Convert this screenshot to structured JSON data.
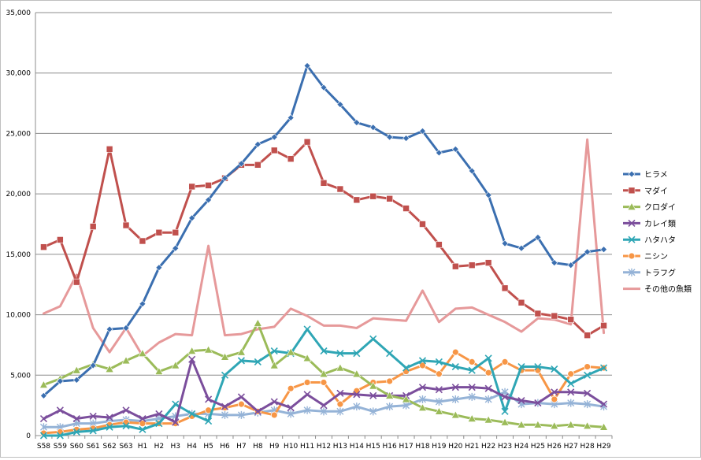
{
  "chart_data": {
    "type": "line",
    "title": "",
    "xlabel": "",
    "ylabel": "",
    "ylim": [
      0,
      35000
    ],
    "yticks": [
      0,
      5000,
      10000,
      15000,
      20000,
      25000,
      30000,
      35000
    ],
    "ytick_labels": [
      "0",
      "5,000",
      "10,000",
      "15,000",
      "20,000",
      "25,000",
      "30,000",
      "35,000"
    ],
    "grid": true,
    "legend_position": "right",
    "categories": [
      "S58",
      "S59",
      "S60",
      "S61",
      "S62",
      "S63",
      "H1",
      "H2",
      "H3",
      "H4",
      "H5",
      "H6",
      "H7",
      "H8",
      "H9",
      "H10",
      "H11",
      "H12",
      "H13",
      "H14",
      "H15",
      "H16",
      "H17",
      "H18",
      "H19",
      "H20",
      "H21",
      "H22",
      "H23",
      "H24",
      "H25",
      "H26",
      "H27",
      "H28",
      "H29"
    ],
    "series": [
      {
        "name": "ヒラメ",
        "color": "#3b6fb0",
        "marker": "diamond",
        "values": [
          3300,
          4500,
          4600,
          5800,
          8800,
          8900,
          10900,
          13900,
          15500,
          18000,
          19500,
          21300,
          22500,
          24100,
          24700,
          26300,
          30600,
          28800,
          27400,
          25900,
          25500,
          24700,
          24600,
          25200,
          23400,
          23700,
          21900,
          19900,
          15900,
          15500,
          16400,
          14300,
          14100,
          15200,
          15400
        ]
      },
      {
        "name": "マダイ",
        "color": "#c0504d",
        "marker": "square",
        "values": [
          15600,
          16200,
          12700,
          17300,
          23700,
          17400,
          16100,
          16800,
          16800,
          20600,
          20700,
          21300,
          22400,
          22400,
          23600,
          22900,
          24300,
          20900,
          20400,
          19500,
          19800,
          19600,
          18800,
          17500,
          15800,
          14000,
          14100,
          14300,
          12200,
          11000,
          10100,
          9900,
          9600,
          8300,
          9100
        ]
      },
      {
        "name": "クロダイ",
        "color": "#9bbb59",
        "marker": "triangle",
        "values": [
          4200,
          4700,
          5400,
          5900,
          5500,
          6200,
          6800,
          5300,
          5800,
          7000,
          7100,
          6500,
          6900,
          9300,
          5800,
          6900,
          6400,
          5100,
          5600,
          5100,
          4100,
          3300,
          3000,
          2300,
          2000,
          1700,
          1400,
          1300,
          1100,
          900,
          900,
          800,
          900,
          800,
          700
        ]
      },
      {
        "name": "カレイ類",
        "color": "#7b4e9c",
        "marker": "x",
        "values": [
          1400,
          2100,
          1400,
          1600,
          1500,
          2100,
          1400,
          1800,
          1100,
          6300,
          3000,
          2400,
          3200,
          2000,
          2800,
          2300,
          3400,
          2500,
          3500,
          3400,
          3300,
          3300,
          3300,
          4000,
          3800,
          4000,
          4000,
          3900,
          3200,
          2900,
          2700,
          3600,
          3600,
          3500,
          2600
        ]
      },
      {
        "name": "ハタハタ",
        "color": "#2fa6b5",
        "marker": "x",
        "values": [
          0,
          0,
          300,
          400,
          700,
          800,
          500,
          1000,
          2600,
          1800,
          1200,
          5000,
          6200,
          6100,
          7000,
          6800,
          8800,
          7000,
          6800,
          6800,
          8000,
          6800,
          5600,
          6200,
          6100,
          5700,
          5400,
          6400,
          2000,
          5700,
          5700,
          5500,
          4300,
          5000,
          5600
        ]
      },
      {
        "name": "ニシン",
        "color": "#f79646",
        "marker": "circle",
        "values": [
          200,
          300,
          500,
          600,
          900,
          1100,
          1000,
          1000,
          1000,
          1600,
          2100,
          2300,
          2600,
          2000,
          1700,
          3900,
          4400,
          4400,
          2600,
          3700,
          4400,
          4500,
          5300,
          5800,
          5100,
          6900,
          6100,
          5200,
          6100,
          5400,
          5400,
          3000,
          5100,
          5700,
          5600
        ]
      },
      {
        "name": "トラフグ",
        "color": "#95b3d7",
        "marker": "star",
        "values": [
          700,
          700,
          1000,
          1000,
          1200,
          1300,
          1200,
          1400,
          1600,
          1800,
          1800,
          1700,
          1700,
          1900,
          2100,
          1800,
          2100,
          2000,
          2000,
          2400,
          2000,
          2400,
          2500,
          3000,
          2800,
          3000,
          3200,
          3000,
          3600,
          2600,
          2700,
          2600,
          2700,
          2600,
          2400
        ]
      },
      {
        "name": "その他の魚類",
        "color": "#e6999a",
        "marker": "none",
        "values": [
          10100,
          10700,
          13300,
          8900,
          6900,
          8900,
          6600,
          7700,
          8400,
          8300,
          15700,
          8300,
          8400,
          8800,
          9000,
          10500,
          9900,
          9100,
          9100,
          8900,
          9700,
          9600,
          9500,
          12000,
          9400,
          10500,
          10600,
          10000,
          9400,
          8600,
          9700,
          9600,
          9200,
          24500,
          8500
        ]
      }
    ]
  }
}
